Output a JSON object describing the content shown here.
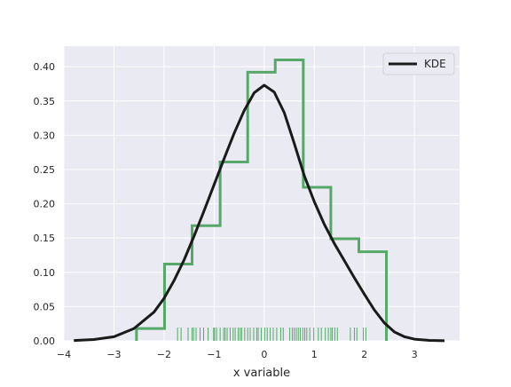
{
  "chart_data": {
    "type": "area",
    "title": "",
    "xlabel": "x variable",
    "ylabel": "",
    "xlim": [
      -4.0,
      3.9
    ],
    "ylim": [
      0,
      0.43
    ],
    "x_ticks": [
      -4,
      -3,
      -2,
      -1,
      0,
      1,
      2,
      3
    ],
    "x_tick_labels": [
      "−4",
      "−3",
      "−2",
      "−1",
      "0",
      "1",
      "2",
      "3"
    ],
    "y_ticks": [
      0.0,
      0.05,
      0.1,
      0.15,
      0.2,
      0.25,
      0.3,
      0.35,
      0.4
    ],
    "y_tick_labels": [
      "0.00",
      "0.05",
      "0.10",
      "0.15",
      "0.20",
      "0.25",
      "0.30",
      "0.35",
      "0.40"
    ],
    "grid": true,
    "legend": {
      "position": "top-right",
      "entries": [
        "KDE"
      ]
    },
    "histogram": {
      "style": "step",
      "color": "#55a868",
      "bin_edges": [
        -2.55,
        -1.99,
        -1.44,
        -0.88,
        -0.33,
        0.22,
        0.78,
        1.33,
        1.89,
        2.44
      ],
      "densities": [
        0.018,
        0.112,
        0.168,
        0.261,
        0.392,
        0.41,
        0.224,
        0.149,
        0.13
      ]
    },
    "kde": {
      "name": "KDE",
      "color": "#1a1a1a",
      "x": [
        -3.8,
        -3.4,
        -3.0,
        -2.6,
        -2.2,
        -2.0,
        -1.8,
        -1.6,
        -1.4,
        -1.2,
        -1.0,
        -0.8,
        -0.6,
        -0.4,
        -0.2,
        0.0,
        0.2,
        0.4,
        0.6,
        0.8,
        1.0,
        1.2,
        1.4,
        1.6,
        1.8,
        2.0,
        2.2,
        2.4,
        2.6,
        2.8,
        3.0,
        3.3,
        3.6
      ],
      "y": [
        0.0005,
        0.002,
        0.006,
        0.018,
        0.042,
        0.062,
        0.088,
        0.118,
        0.153,
        0.19,
        0.228,
        0.266,
        0.303,
        0.336,
        0.362,
        0.373,
        0.363,
        0.333,
        0.288,
        0.241,
        0.203,
        0.17,
        0.142,
        0.117,
        0.092,
        0.068,
        0.045,
        0.026,
        0.013,
        0.006,
        0.0025,
        0.0006,
        0.0001
      ]
    },
    "rug": {
      "color": "#55a868",
      "x": [
        -1.73,
        -1.66,
        -1.52,
        -1.44,
        -1.41,
        -1.36,
        -1.28,
        -1.21,
        -1.12,
        -1.01,
        -0.99,
        -0.95,
        -0.88,
        -0.81,
        -0.78,
        -0.74,
        -0.68,
        -0.62,
        -0.58,
        -0.52,
        -0.48,
        -0.45,
        -0.39,
        -0.33,
        -0.28,
        -0.21,
        -0.15,
        -0.12,
        -0.06,
        0.01,
        0.06,
        0.12,
        0.18,
        0.25,
        0.33,
        0.38,
        0.51,
        0.56,
        0.6,
        0.64,
        0.68,
        0.72,
        0.77,
        0.81,
        0.85,
        0.91,
        0.99,
        1.08,
        1.14,
        1.22,
        1.28,
        1.33,
        1.36,
        1.41,
        1.46,
        1.72,
        1.8,
        1.85,
        1.98,
        2.03
      ]
    }
  }
}
